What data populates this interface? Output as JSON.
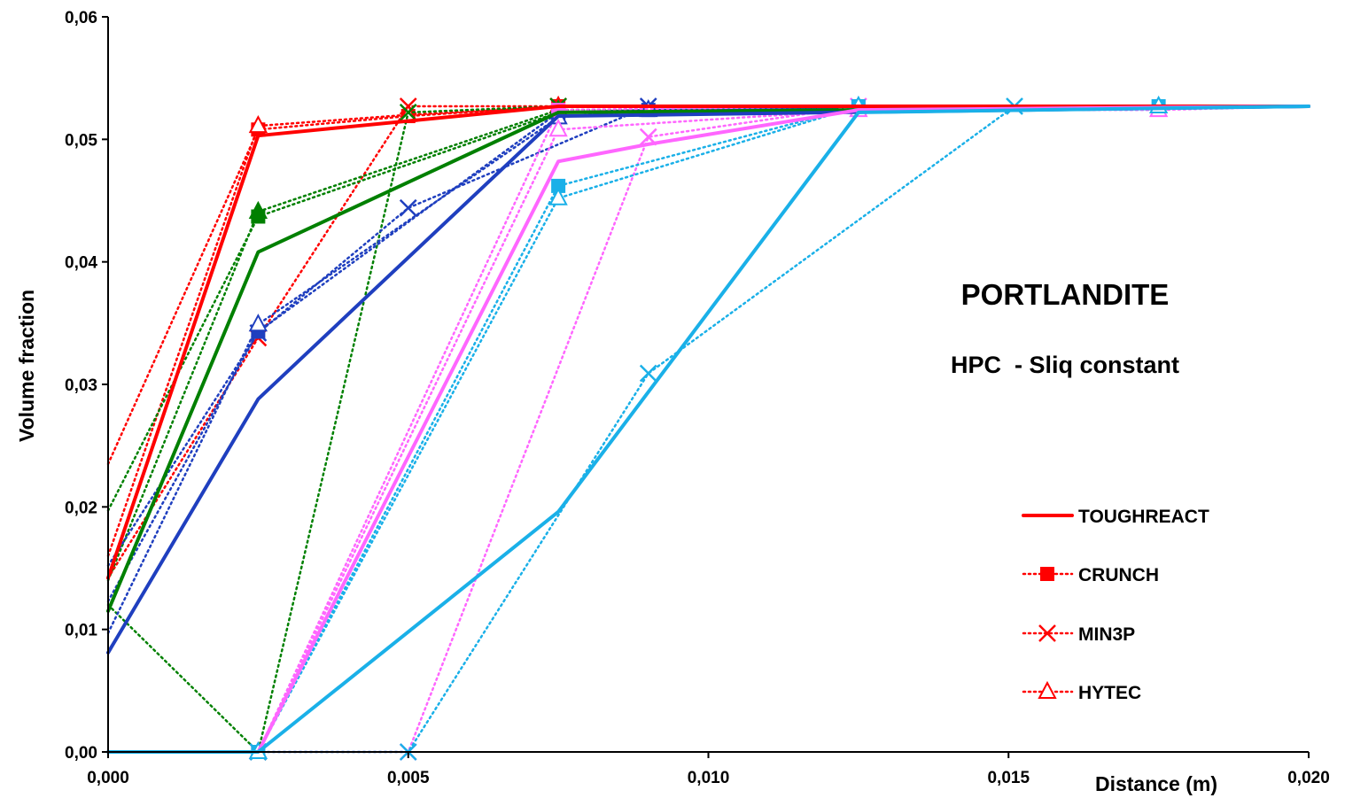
{
  "chart_data": {
    "type": "line",
    "xlabel": "Distance (m)",
    "ylabel": "Volume fraction",
    "xlim": [
      0,
      0.02
    ],
    "ylim": [
      0,
      0.06
    ],
    "x_ticks": [
      "0,000",
      "0,005",
      "0,010",
      "0,015",
      "0,020"
    ],
    "y_ticks": [
      "0,00",
      "0,01",
      "0,02",
      "0,03",
      "0,04",
      "0,05",
      "0,06"
    ],
    "grid": false,
    "annotations": [
      "PORTLANDITE",
      "HPC  - Sliq constant"
    ],
    "legend_position": "right",
    "legend": [
      {
        "label": "TOUGHREACT",
        "style": "solid",
        "marker": "none"
      },
      {
        "label": "CRUNCH",
        "style": "dotted",
        "marker": "square"
      },
      {
        "label": "MIN3P",
        "style": "dotted",
        "marker": "x"
      },
      {
        "label": "HYTEC",
        "style": "dotted",
        "marker": "triangle-open"
      }
    ],
    "colors": {
      "red": "#ff0000",
      "green": "#008000",
      "blue": "#1f3fbf",
      "pink": "#ff66ff",
      "cyan": "#1ab0e8"
    },
    "series": [
      {
        "color": "red",
        "code": "TOUGHREACT",
        "points": [
          [
            0,
            0.0142
          ],
          [
            0.0025,
            0.0503
          ],
          [
            0.0075,
            0.0527
          ],
          [
            0.02,
            0.0527
          ]
        ]
      },
      {
        "color": "red",
        "code": "CRUNCH",
        "points": [
          [
            0,
            0.0235
          ],
          [
            0.0025,
            0.0508
          ],
          [
            0.005,
            0.0519
          ],
          [
            0.0075,
            0.0527
          ],
          [
            0.02,
            0.0527
          ]
        ]
      },
      {
        "color": "red",
        "code": "MIN3P",
        "points": [
          [
            0,
            0.0142
          ],
          [
            0.0025,
            0.0338
          ],
          [
            0.005,
            0.0527
          ],
          [
            0.0075,
            0.0527
          ],
          [
            0.02,
            0.0527
          ]
        ]
      },
      {
        "color": "red",
        "code": "HYTEC",
        "points": [
          [
            0,
            0.016
          ],
          [
            0.0025,
            0.0511
          ],
          [
            0.005,
            0.052
          ],
          [
            0.0075,
            0.0527
          ],
          [
            0.02,
            0.0527
          ]
        ]
      },
      {
        "color": "green",
        "code": "TOUGHREACT",
        "points": [
          [
            0,
            0.0115
          ],
          [
            0.0025,
            0.0408
          ],
          [
            0.0075,
            0.0522
          ],
          [
            0.02,
            0.0527
          ]
        ]
      },
      {
        "color": "green",
        "code": "CRUNCH",
        "points": [
          [
            0,
            0.0197
          ],
          [
            0.0025,
            0.0437
          ],
          [
            0.0075,
            0.0522
          ],
          [
            0.02,
            0.0527
          ]
        ]
      },
      {
        "color": "green",
        "code": "MIN3P",
        "points": [
          [
            0,
            0.012
          ],
          [
            0.0025,
            0.0
          ],
          [
            0.005,
            0.0522
          ],
          [
            0.0075,
            0.0527
          ],
          [
            0.02,
            0.0527
          ]
        ]
      },
      {
        "color": "green",
        "code": "HYTEC",
        "points": [
          [
            0,
            0.014
          ],
          [
            0.0025,
            0.0441
          ],
          [
            0.0075,
            0.0524
          ],
          [
            0.02,
            0.0527
          ]
        ]
      },
      {
        "color": "blue",
        "code": "TOUGHREACT",
        "points": [
          [
            0,
            0.0081
          ],
          [
            0.0025,
            0.0288
          ],
          [
            0.0075,
            0.0519
          ],
          [
            0.02,
            0.0527
          ]
        ]
      },
      {
        "color": "blue",
        "code": "CRUNCH",
        "points": [
          [
            0,
            0.0123
          ],
          [
            0.0025,
            0.0343
          ],
          [
            0.0075,
            0.0522
          ],
          [
            0.009,
            0.0524
          ],
          [
            0.02,
            0.0527
          ]
        ]
      },
      {
        "color": "blue",
        "code": "MIN3P",
        "points": [
          [
            0,
            0.0152
          ],
          [
            0.0025,
            0.0342
          ],
          [
            0.005,
            0.0444
          ],
          [
            0.009,
            0.0527
          ],
          [
            0.02,
            0.0527
          ]
        ]
      },
      {
        "color": "blue",
        "code": "HYTEC",
        "points": [
          [
            0,
            0.0097
          ],
          [
            0.0025,
            0.0349
          ],
          [
            0.0075,
            0.0518
          ],
          [
            0.009,
            0.0524
          ],
          [
            0.02,
            0.0527
          ]
        ]
      },
      {
        "color": "pink",
        "code": "TOUGHREACT",
        "points": [
          [
            0,
            0.0
          ],
          [
            0.0025,
            0.0
          ],
          [
            0.0075,
            0.0482
          ],
          [
            0.009,
            0.0496
          ],
          [
            0.0125,
            0.0524
          ],
          [
            0.02,
            0.0527
          ]
        ]
      },
      {
        "color": "pink",
        "code": "CRUNCH",
        "points": [
          [
            0,
            0.0
          ],
          [
            0.0025,
            0.0
          ],
          [
            0.0075,
            0.0524
          ],
          [
            0.0125,
            0.0527
          ],
          [
            0.02,
            0.0527
          ]
        ]
      },
      {
        "color": "pink",
        "code": "MIN3P",
        "points": [
          [
            0,
            0.0
          ],
          [
            0.0025,
            0.0
          ],
          [
            0.005,
            0.0
          ],
          [
            0.009,
            0.0502
          ],
          [
            0.0125,
            0.0527
          ],
          [
            0.02,
            0.0527
          ]
        ]
      },
      {
        "color": "pink",
        "code": "HYTEC",
        "points": [
          [
            0,
            0.0
          ],
          [
            0.0025,
            0.0
          ],
          [
            0.0075,
            0.0508
          ],
          [
            0.0125,
            0.0524
          ],
          [
            0.0175,
            0.0524
          ],
          [
            0.02,
            0.0527
          ]
        ]
      },
      {
        "color": "cyan",
        "code": "TOUGHREACT",
        "points": [
          [
            0,
            0.0
          ],
          [
            0.0025,
            0.0
          ],
          [
            0.0075,
            0.0196
          ],
          [
            0.0125,
            0.0522
          ],
          [
            0.02,
            0.0527
          ]
        ]
      },
      {
        "color": "cyan",
        "code": "CRUNCH",
        "points": [
          [
            0,
            0.0
          ],
          [
            0.0025,
            0.0
          ],
          [
            0.0075,
            0.0462
          ],
          [
            0.0125,
            0.0527
          ],
          [
            0.0175,
            0.0527
          ],
          [
            0.02,
            0.0527
          ]
        ]
      },
      {
        "color": "cyan",
        "code": "MIN3P",
        "points": [
          [
            0,
            0.0
          ],
          [
            0.0025,
            0.0
          ],
          [
            0.005,
            0.0
          ],
          [
            0.009,
            0.0309
          ],
          [
            0.0151,
            0.0527
          ],
          [
            0.02,
            0.0527
          ]
        ]
      },
      {
        "color": "cyan",
        "code": "HYTEC",
        "points": [
          [
            0,
            0.0
          ],
          [
            0.0025,
            0.0
          ],
          [
            0.0075,
            0.0452
          ],
          [
            0.0125,
            0.0527
          ],
          [
            0.0175,
            0.0527
          ],
          [
            0.02,
            0.0527
          ]
        ]
      }
    ]
  }
}
